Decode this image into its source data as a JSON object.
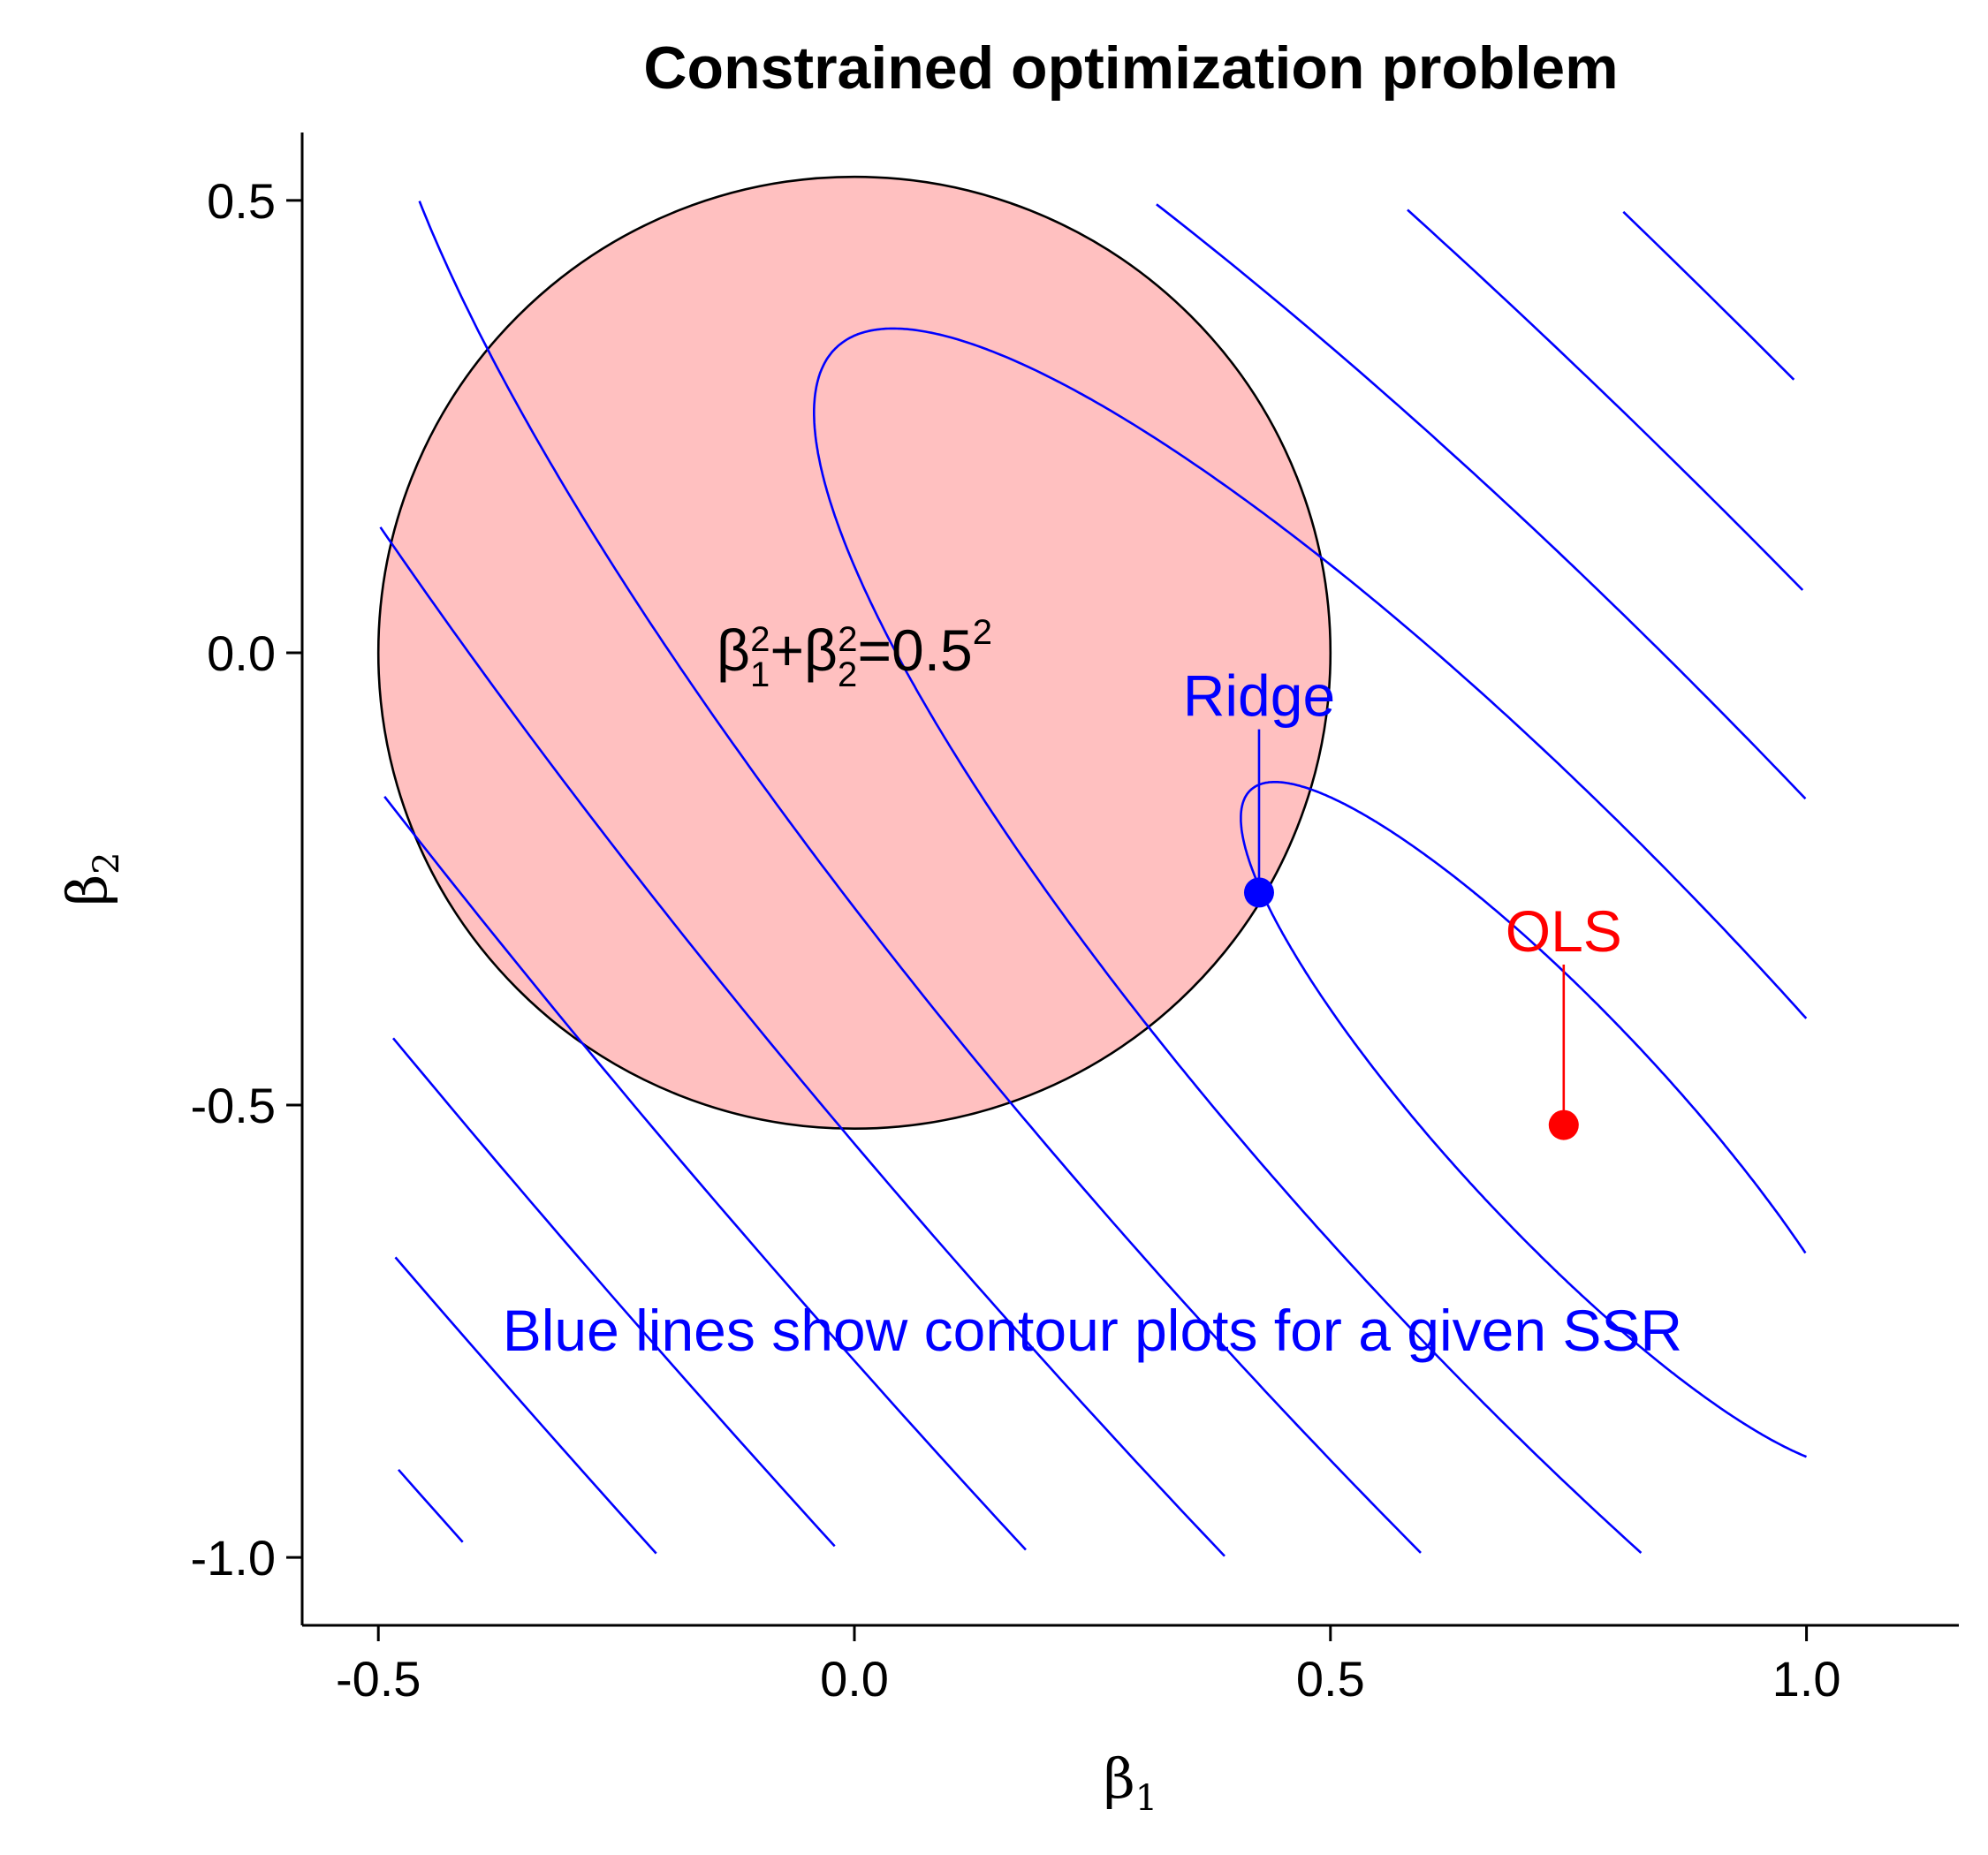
{
  "chart_data": {
    "type": "contour",
    "title": "Constrained optimization problem",
    "xlabel": "β1",
    "ylabel": "β2",
    "xlim": [
      -0.58,
      1.16
    ],
    "ylim": [
      -1.075,
      0.575
    ],
    "x_ticks": [
      -0.5,
      0.0,
      0.5,
      1.0
    ],
    "x_tick_labels": [
      "-0.5",
      "0.0",
      "0.5",
      "1.0"
    ],
    "y_ticks": [
      -1.0,
      -0.5,
      0.0,
      0.5
    ],
    "y_tick_labels": [
      "-1.0",
      "-0.5",
      "0.0",
      "0.5"
    ],
    "grid": false,
    "constraint": {
      "equation": "β1²+β2²=0.5²",
      "radius": 0.5,
      "center": [
        0.0,
        0.0
      ],
      "fill_color": "#ffc0c0",
      "stroke_color": "#000000"
    },
    "ssr": {
      "center": [
        0.745,
        -0.522
      ],
      "quadratic": [
        1.0,
        0.8,
        0.8
      ],
      "levels": [
        0.023,
        0.124,
        0.315,
        0.58,
        0.92,
        1.33,
        1.81,
        2.36
      ],
      "color": "#0000ff"
    },
    "points": [
      {
        "label": "Ridge",
        "x": 0.425,
        "y": -0.265,
        "color": "#0000ff",
        "label_y": -0.07
      },
      {
        "label": "OLS",
        "x": 0.745,
        "y": -0.522,
        "color": "#ff0000",
        "label_y": -0.33
      }
    ],
    "annotation": {
      "text": "Blue lines show contour plots for a given SSR",
      "color": "#0000ff",
      "x": 0.25,
      "y": -0.75
    }
  }
}
